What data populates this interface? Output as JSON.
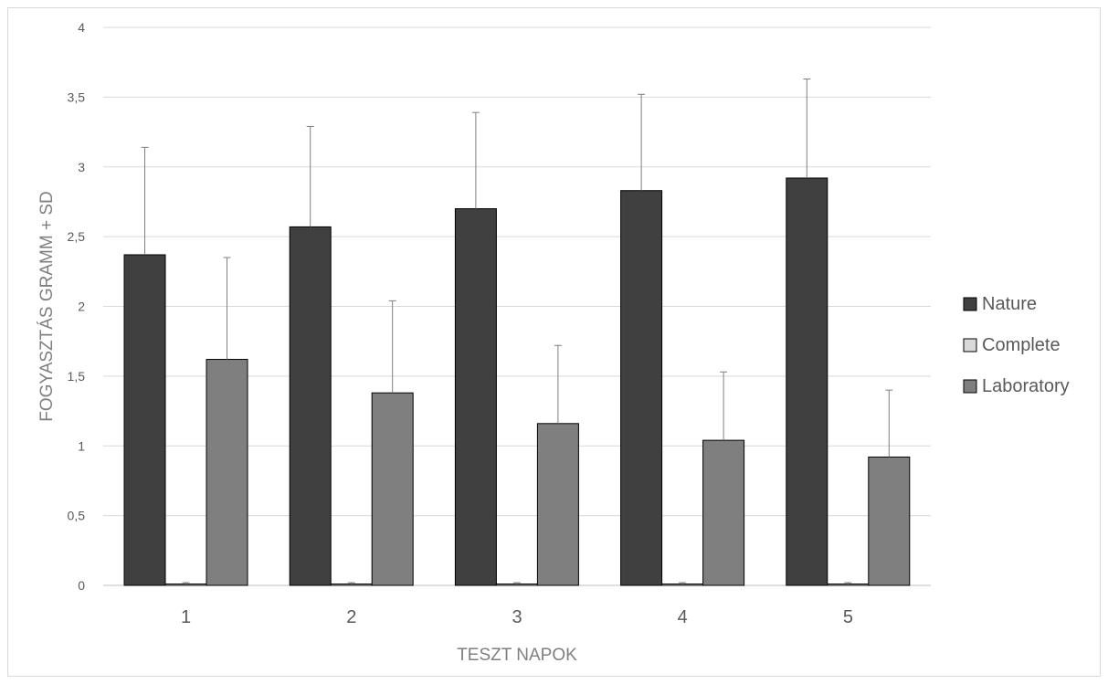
{
  "chart_data": {
    "type": "bar",
    "title": "",
    "xlabel": "TESZT NAPOK",
    "ylabel": "FOGYASZTÁS GRAMM + SD",
    "ylim": [
      0,
      4
    ],
    "yticks": [
      0,
      0.5,
      1,
      1.5,
      2,
      2.5,
      3,
      3.5,
      4
    ],
    "ytick_labels": [
      "0",
      "0,5",
      "1",
      "1,5",
      "2",
      "2,5",
      "3",
      "3,5",
      "4"
    ],
    "categories": [
      "1",
      "2",
      "3",
      "4",
      "5"
    ],
    "grid": true,
    "legend_position": "right",
    "series": [
      {
        "name": "Nature",
        "color": "#404040",
        "values": [
          2.37,
          2.57,
          2.7,
          2.83,
          2.92
        ],
        "sd": [
          0.77,
          0.72,
          0.69,
          0.69,
          0.71
        ]
      },
      {
        "name": "Complete",
        "color": "#d9d9d9",
        "values": [
          0.01,
          0.01,
          0.01,
          0.01,
          0.01
        ],
        "sd": [
          0.01,
          0.01,
          0.01,
          0.01,
          0.01
        ]
      },
      {
        "name": "Laboratory",
        "color": "#7f7f7f",
        "values": [
          1.62,
          1.38,
          1.16,
          1.04,
          0.92
        ],
        "sd": [
          0.73,
          0.66,
          0.56,
          0.49,
          0.48
        ]
      }
    ]
  }
}
